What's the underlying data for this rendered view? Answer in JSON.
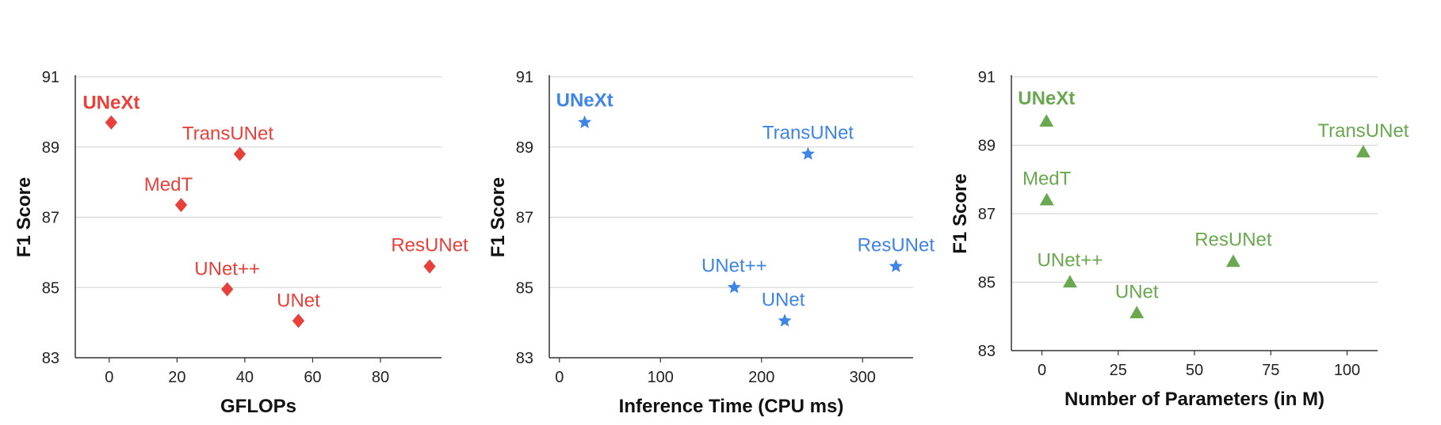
{
  "chart_data": [
    {
      "type": "scatter",
      "xlabel": "GFLOPs",
      "ylabel": "F1 Score",
      "xlim": [
        -10,
        98
      ],
      "ylim": [
        83,
        91
      ],
      "xticks": [
        "0",
        "20",
        "40",
        "60",
        "80"
      ],
      "yticks": [
        "83",
        "85",
        "87",
        "89",
        "91"
      ],
      "grid": "horizontal",
      "color": "#e8403a",
      "marker": "diamond",
      "points": [
        {
          "label": "UNeXt",
          "x": 0.6,
          "y": 89.7,
          "bold": true
        },
        {
          "label": "TransUNet",
          "x": 38.5,
          "y": 88.8
        },
        {
          "label": "MedT",
          "x": 21.2,
          "y": 87.35
        },
        {
          "label": "UNet++",
          "x": 34.8,
          "y": 84.95
        },
        {
          "label": "UNet",
          "x": 55.8,
          "y": 84.05
        },
        {
          "label": "ResUNet",
          "x": 94.5,
          "y": 85.6
        }
      ]
    },
    {
      "type": "scatter",
      "xlabel": "Inference Time (CPU ms)",
      "ylabel": "F1 Score",
      "xlim": [
        -10,
        350
      ],
      "ylim": [
        83,
        91
      ],
      "xticks": [
        "0",
        "100",
        "200",
        "300"
      ],
      "yticks": [
        "83",
        "85",
        "87",
        "89",
        "91"
      ],
      "grid": "horizontal",
      "color": "#3f85e6",
      "marker": "star",
      "points": [
        {
          "label": "UNeXt",
          "x": 25,
          "y": 89.7,
          "bold": true
        },
        {
          "label": "TransUNet",
          "x": 246,
          "y": 88.8
        },
        {
          "label": "UNet++",
          "x": 173,
          "y": 85.0
        },
        {
          "label": "UNet",
          "x": 223,
          "y": 84.05
        },
        {
          "label": "ResUNet",
          "x": 333,
          "y": 85.6
        }
      ]
    },
    {
      "type": "scatter",
      "xlabel": "Number of Parameters (in M)",
      "ylabel": "F1 Score",
      "xlim": [
        -10,
        110
      ],
      "ylim": [
        83,
        91
      ],
      "xticks": [
        "0",
        "25",
        "50",
        "75",
        "100"
      ],
      "yticks": [
        "83",
        "85",
        "87",
        "89",
        "91"
      ],
      "grid": "horizontal",
      "color": "#6aa84f",
      "marker": "triangle",
      "points": [
        {
          "label": "UNeXt",
          "x": 1.5,
          "y": 89.7,
          "bold": true
        },
        {
          "label": "TransUNet",
          "x": 105.3,
          "y": 88.8
        },
        {
          "label": "MedT",
          "x": 1.6,
          "y": 87.4
        },
        {
          "label": "UNet++",
          "x": 9.2,
          "y": 85.0
        },
        {
          "label": "UNet",
          "x": 31.1,
          "y": 84.1
        },
        {
          "label": "ResUNet",
          "x": 62.7,
          "y": 85.6
        }
      ]
    }
  ]
}
